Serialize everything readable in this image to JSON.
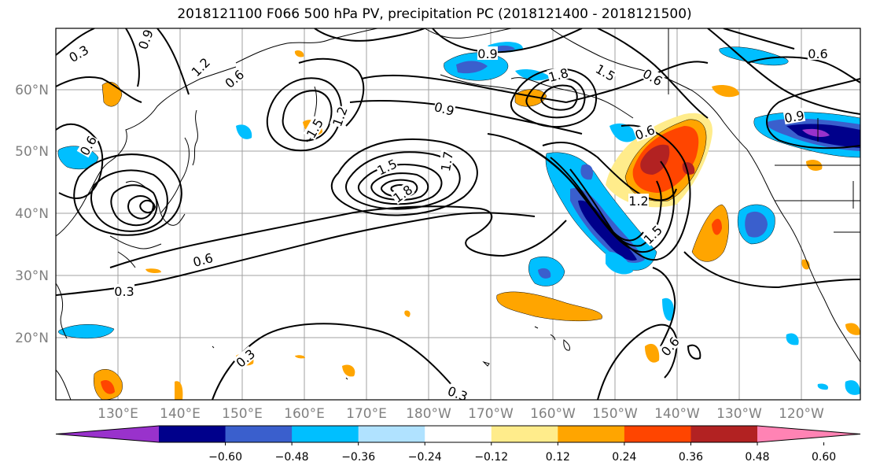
{
  "title": "2018121100 F066 500 hPa PV, precipitation PC (2018121400 - 2018121500)",
  "lat_labels": [
    "60°N",
    "50°N",
    "40°N",
    "30°N",
    "20°N"
  ],
  "lon_labels": [
    "130°E",
    "140°E",
    "150°E",
    "160°E",
    "170°E",
    "180°W",
    "170°W",
    "160°W",
    "150°W",
    "140°W",
    "130°W",
    "120°W"
  ],
  "colorbar": {
    "colors": [
      "#9932cc",
      "#00008b",
      "#3a5fcd",
      "#00bfff",
      "#b0e2ff",
      "#ffffff",
      "#ffec8b",
      "#ffa500",
      "#ff4500",
      "#b22222",
      "#ff83b4"
    ],
    "tick_labels": [
      "−0.60",
      "−0.48",
      "−0.36",
      "−0.24",
      "−0.12",
      "0.12",
      "0.24",
      "0.36",
      "0.48",
      "0.60"
    ]
  },
  "contour_labels": [
    "0.9",
    "0.3",
    "1.2",
    "0.6",
    "0.9",
    "1.8",
    "1.5",
    "0.6",
    "1.5",
    "1.2",
    "0.9",
    "0.6",
    "0.6",
    "0.9",
    "0.6",
    "1.5",
    "1.8",
    "1.7",
    "0.6",
    "0.3",
    "1.2",
    "1.5",
    "0.6",
    "0.3",
    "0.3"
  ]
}
